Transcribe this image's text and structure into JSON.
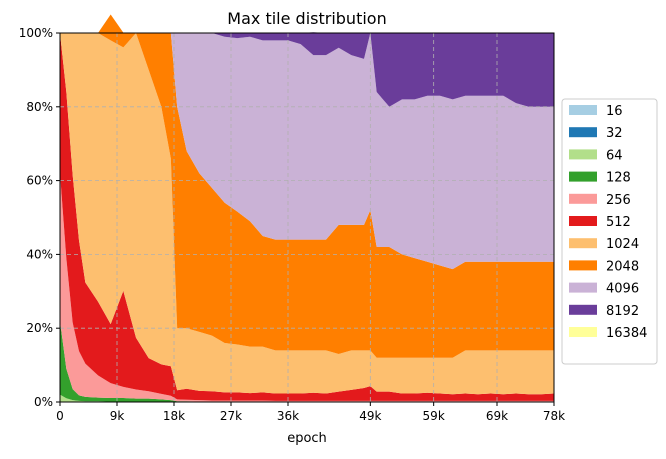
{
  "chart_data": {
    "type": "area",
    "stacked": true,
    "normalized": true,
    "title": "Max tile distribution",
    "xlabel": "epoch",
    "ylabel": "",
    "xlim": [
      0,
      78000
    ],
    "ylim": [
      0,
      1
    ],
    "x_tick_values": [
      0,
      9000,
      18000,
      27000,
      36000,
      49000,
      59000,
      69000,
      78000
    ],
    "x_tick_labels": [
      "0",
      "9k",
      "18k",
      "27k",
      "36k",
      "49k",
      "59k",
      "69k",
      "78k"
    ],
    "y_tick_values": [
      0,
      0.2,
      0.4,
      0.6,
      0.8,
      1.0
    ],
    "y_tick_labels": [
      "0%",
      "20%",
      "40%",
      "60%",
      "80%",
      "100%"
    ],
    "grid": true,
    "legend_position": "right",
    "x": [
      0,
      1000,
      2000,
      3000,
      4000,
      6000,
      8000,
      10000,
      12000,
      14000,
      16000,
      17500,
      18500,
      20000,
      22000,
      24000,
      26000,
      28000,
      30000,
      32000,
      34000,
      36000,
      38000,
      40000,
      42000,
      44000,
      46000,
      48000,
      49000,
      50000,
      52000,
      54000,
      56000,
      58000,
      60000,
      62000,
      64000,
      66000,
      68000,
      70000,
      72000,
      74000,
      76000,
      78000
    ],
    "series": [
      {
        "name": "16",
        "color": "#a6cee3",
        "values": [
          0,
          0,
          0,
          0,
          0,
          0,
          0,
          0,
          0,
          0,
          0,
          0,
          0,
          0,
          0,
          0,
          0,
          0,
          0,
          0,
          0,
          0,
          0,
          0,
          0,
          0,
          0,
          0,
          0,
          0,
          0,
          0,
          0,
          0,
          0,
          0,
          0,
          0,
          0,
          0,
          0,
          0,
          0,
          0
        ]
      },
      {
        "name": "32",
        "color": "#1f78b4",
        "values": [
          0,
          0,
          0,
          0,
          0,
          0,
          0,
          0,
          0,
          0,
          0,
          0,
          0,
          0,
          0,
          0,
          0,
          0,
          0,
          0,
          0,
          0,
          0,
          0,
          0,
          0,
          0,
          0,
          0,
          0,
          0,
          0,
          0,
          0,
          0,
          0,
          0,
          0,
          0,
          0,
          0,
          0,
          0,
          0
        ]
      },
      {
        "name": "64",
        "color": "#b2df8a",
        "values": [
          0.02,
          0.01,
          0.005,
          0.003,
          0.002,
          0.002,
          0.001,
          0.001,
          0.001,
          0.001,
          0.001,
          0.001,
          0,
          0,
          0,
          0,
          0,
          0,
          0,
          0,
          0,
          0,
          0,
          0,
          0,
          0,
          0,
          0,
          0,
          0,
          0,
          0,
          0,
          0,
          0,
          0,
          0,
          0,
          0,
          0,
          0,
          0,
          0,
          0
        ]
      },
      {
        "name": "128",
        "color": "#33a02c",
        "values": [
          0.2,
          0.08,
          0.03,
          0.015,
          0.012,
          0.01,
          0.01,
          0.01,
          0.008,
          0.008,
          0.006,
          0.004,
          0.002,
          0.002,
          0.001,
          0.001,
          0.001,
          0.001,
          0.001,
          0.001,
          0.001,
          0.001,
          0.001,
          0.001,
          0.001,
          0.001,
          0.001,
          0.001,
          0.001,
          0.001,
          0.001,
          0.001,
          0.001,
          0.001,
          0.001,
          0.001,
          0.001,
          0.001,
          0.001,
          0.001,
          0.001,
          0.001,
          0.001,
          0.001
        ]
      },
      {
        "name": "256",
        "color": "#fb9a99",
        "values": [
          0.4,
          0.3,
          0.18,
          0.12,
          0.09,
          0.06,
          0.04,
          0.03,
          0.025,
          0.02,
          0.015,
          0.012,
          0.005,
          0.004,
          0.004,
          0.003,
          0.003,
          0.003,
          0.003,
          0.003,
          0.002,
          0.002,
          0.002,
          0.002,
          0.002,
          0.002,
          0.002,
          0.002,
          0.002,
          0.002,
          0.002,
          0.002,
          0.002,
          0.002,
          0.002,
          0.002,
          0.002,
          0.002,
          0.002,
          0.002,
          0.002,
          0.002,
          0.002,
          0.002
        ]
      },
      {
        "name": "512",
        "color": "#e31a1c",
        "values": [
          0.38,
          0.45,
          0.4,
          0.3,
          0.22,
          0.2,
          0.16,
          0.26,
          0.14,
          0.09,
          0.08,
          0.08,
          0.025,
          0.03,
          0.025,
          0.025,
          0.022,
          0.022,
          0.02,
          0.022,
          0.02,
          0.02,
          0.02,
          0.022,
          0.02,
          0.025,
          0.03,
          0.035,
          0.04,
          0.025,
          0.025,
          0.02,
          0.02,
          0.022,
          0.02,
          0.018,
          0.02,
          0.018,
          0.02,
          0.018,
          0.02,
          0.018,
          0.018,
          0.02
        ]
      },
      {
        "name": "1024",
        "color": "#fdbf6f",
        "values": [
          0,
          0.16,
          0.385,
          0.562,
          0.676,
          0.728,
          0.769,
          0.66,
          0.826,
          0.781,
          0.698,
          0.563,
          0.168,
          0.164,
          0.16,
          0.151,
          0.134,
          0.13,
          0.126,
          0.124,
          0.117,
          0.117,
          0.117,
          0.115,
          0.117,
          0.102,
          0.107,
          0.102,
          0.097,
          0.092,
          0.092,
          0.097,
          0.097,
          0.095,
          0.097,
          0.099,
          0.117,
          0.119,
          0.117,
          0.119,
          0.117,
          0.119,
          0.119,
          0.117
        ]
      },
      {
        "name": "2048",
        "color": "#ff7f00",
        "values": [
          0,
          0,
          0,
          0,
          0,
          0,
          0.07,
          0.04,
          0,
          0.1,
          0.2,
          0.34,
          0.6,
          0.48,
          0.43,
          0.4,
          0.38,
          0.36,
          0.34,
          0.3,
          0.3,
          0.3,
          0.3,
          0.3,
          0.3,
          0.35,
          0.34,
          0.34,
          0.38,
          0.3,
          0.3,
          0.28,
          0.27,
          0.26,
          0.25,
          0.24,
          0.24,
          0.24,
          0.24,
          0.24,
          0.24,
          0.24,
          0.24,
          0.24
        ]
      },
      {
        "name": "4096",
        "color": "#cab2d6",
        "values": [
          0,
          0,
          0,
          0,
          0,
          0,
          0,
          0,
          0,
          0,
          0,
          0,
          0.2,
          0.32,
          0.38,
          0.42,
          0.45,
          0.47,
          0.5,
          0.53,
          0.54,
          0.54,
          0.53,
          0.5,
          0.5,
          0.48,
          0.46,
          0.45,
          0.48,
          0.42,
          0.38,
          0.42,
          0.43,
          0.45,
          0.46,
          0.46,
          0.45,
          0.45,
          0.45,
          0.45,
          0.43,
          0.42,
          0.42,
          0.42
        ]
      },
      {
        "name": "8192",
        "color": "#6a3d9a",
        "values": [
          0,
          0,
          0,
          0,
          0,
          0,
          0,
          0,
          0,
          0,
          0,
          0,
          0,
          0,
          0,
          0,
          0.01,
          0.015,
          0.01,
          0.02,
          0.02,
          0.02,
          0.03,
          0.062,
          0.06,
          0.04,
          0.06,
          0.07,
          0,
          0.16,
          0.2,
          0.18,
          0.18,
          0.17,
          0.17,
          0.18,
          0.17,
          0.17,
          0.17,
          0.17,
          0.19,
          0.2,
          0.2,
          0.2
        ]
      },
      {
        "name": "16384",
        "color": "#ffff99",
        "values": [
          0,
          0,
          0,
          0,
          0,
          0,
          0,
          0,
          0,
          0,
          0,
          0,
          0,
          0,
          0,
          0,
          0,
          0,
          0,
          0,
          0,
          0,
          0,
          0,
          0,
          0,
          0,
          0,
          0,
          0,
          0,
          0,
          0,
          0,
          0,
          0,
          0,
          0,
          0,
          0,
          0,
          0,
          0,
          0
        ]
      }
    ]
  }
}
